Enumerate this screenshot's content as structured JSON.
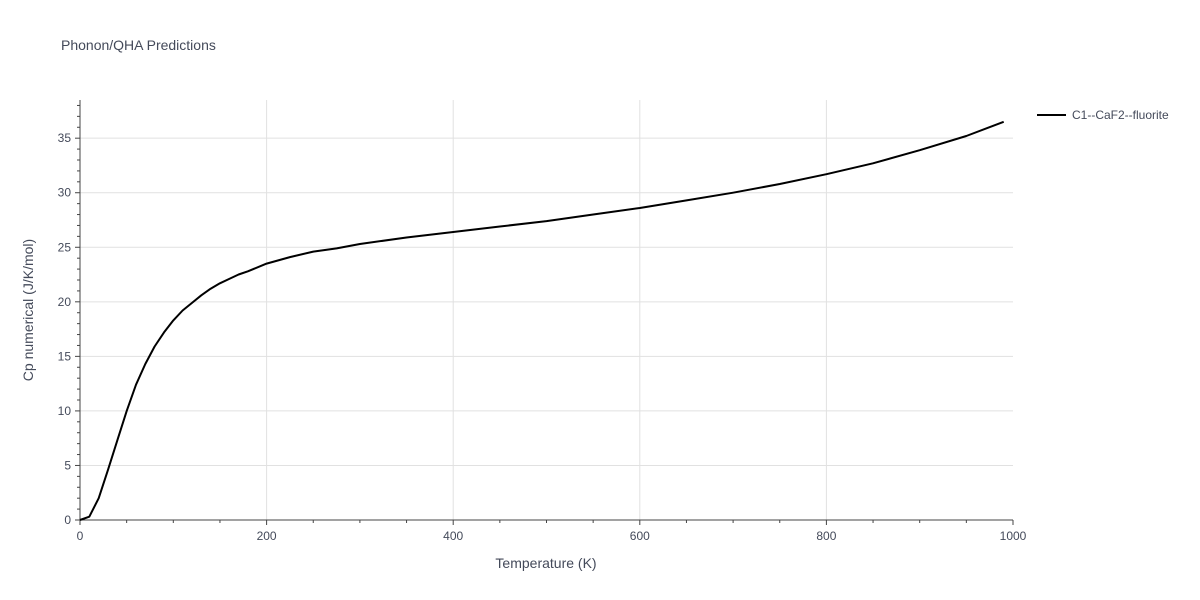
{
  "chart_data": {
    "type": "line",
    "title": "Phonon/QHA Predictions",
    "xlabel": "Temperature (K)",
    "ylabel": "Cp numerical (J/K/mol)",
    "xlim": [
      0,
      1000
    ],
    "ylim": [
      0,
      38.5
    ],
    "x_ticks": [
      0,
      200,
      400,
      600,
      800,
      1000
    ],
    "x_tick_labels": [
      "0",
      "200",
      "400",
      "600",
      "800",
      "1000"
    ],
    "y_ticks": [
      0,
      5,
      10,
      15,
      20,
      25,
      30,
      35
    ],
    "y_tick_labels": [
      "0",
      "5",
      "10",
      "15",
      "20",
      "25",
      "30",
      "35"
    ],
    "grid": true,
    "legend_position": "top-right, outside plot",
    "series": [
      {
        "name": "C1--CaF2--fluorite",
        "color": "#000000",
        "x": [
          0,
          10,
          20,
          30,
          40,
          50,
          60,
          70,
          80,
          90,
          100,
          110,
          120,
          130,
          140,
          150,
          160,
          170,
          180,
          200,
          225,
          250,
          275,
          300,
          350,
          400,
          450,
          500,
          550,
          600,
          650,
          700,
          750,
          800,
          850,
          900,
          950,
          990
        ],
        "y": [
          0,
          0.3,
          2.0,
          4.6,
          7.3,
          10.0,
          12.4,
          14.3,
          15.9,
          17.2,
          18.3,
          19.2,
          19.9,
          20.6,
          21.2,
          21.7,
          22.1,
          22.5,
          22.8,
          23.5,
          24.1,
          24.6,
          24.9,
          25.3,
          25.9,
          26.4,
          26.9,
          27.4,
          28.0,
          28.6,
          29.3,
          30.0,
          30.8,
          31.7,
          32.7,
          33.9,
          35.2,
          36.5
        ]
      }
    ]
  }
}
